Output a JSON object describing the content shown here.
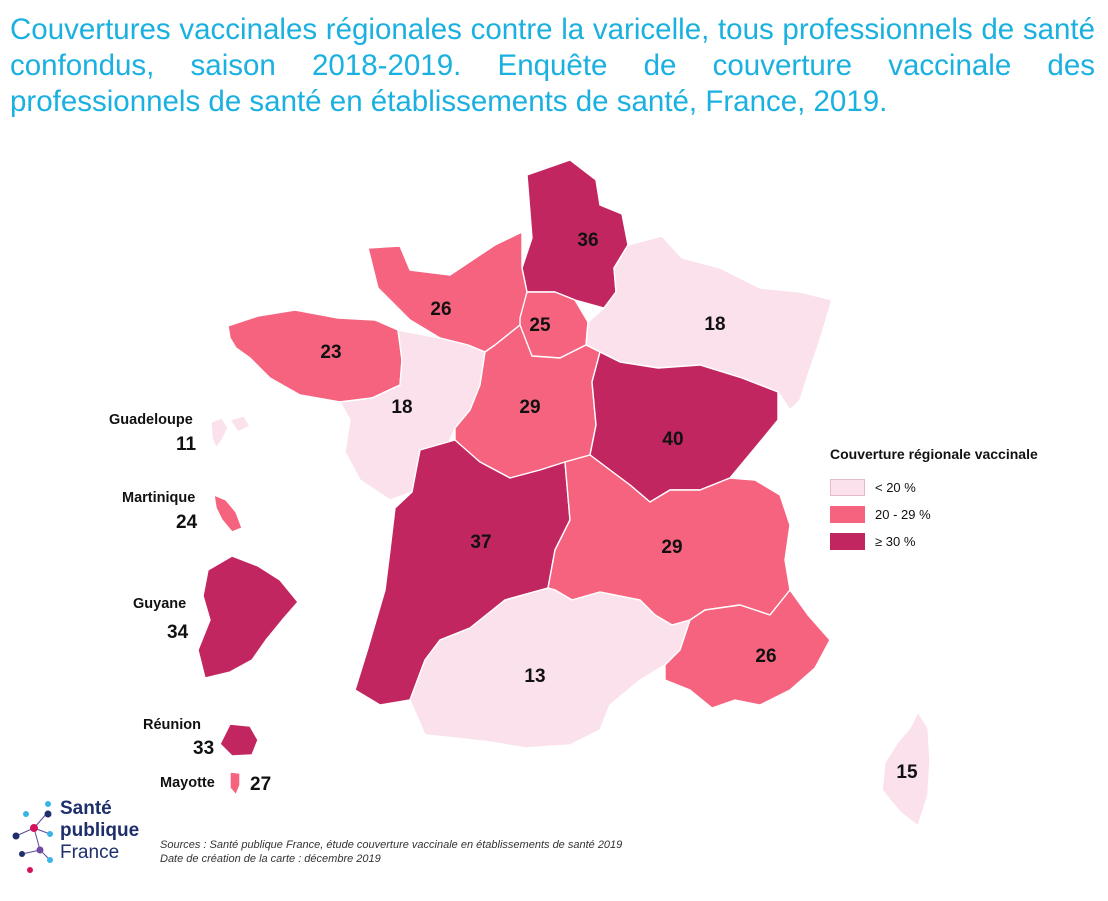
{
  "title": "Couvertures vaccinales régionales contre la varicelle, tous professionnels de santé confondus, saison 2018-2019. Enquête de couverture vaccinale des professionnels de santé en établissements de santé, France, 2019.",
  "colors": {
    "low": "#fbe1ec",
    "mid": "#f5637f",
    "high": "#c22660",
    "title": "#1ab0e0"
  },
  "regions": [
    {
      "id": "hauts-de-france",
      "value": "36",
      "class": "high"
    },
    {
      "id": "normandie",
      "value": "26",
      "class": "mid"
    },
    {
      "id": "ile-de-france",
      "value": "25",
      "class": "mid"
    },
    {
      "id": "grand-est",
      "value": "18",
      "class": "low"
    },
    {
      "id": "bretagne",
      "value": "23",
      "class": "mid"
    },
    {
      "id": "pays-de-la-loire",
      "value": "18",
      "class": "low"
    },
    {
      "id": "centre-val-de-loire",
      "value": "29",
      "class": "mid"
    },
    {
      "id": "bourgogne-franche-comte",
      "value": "40",
      "class": "high"
    },
    {
      "id": "nouvelle-aquitaine",
      "value": "37",
      "class": "high"
    },
    {
      "id": "auvergne-rhone-alpes",
      "value": "29",
      "class": "mid"
    },
    {
      "id": "occitanie",
      "value": "13",
      "class": "low"
    },
    {
      "id": "paca",
      "value": "26",
      "class": "mid"
    },
    {
      "id": "corse",
      "value": "15",
      "class": "low"
    }
  ],
  "overseas": [
    {
      "id": "guadeloupe",
      "name": "Guadeloupe",
      "value": "11",
      "class": "low"
    },
    {
      "id": "martinique",
      "name": "Martinique",
      "value": "24",
      "class": "mid"
    },
    {
      "id": "guyane",
      "name": "Guyane",
      "value": "34",
      "class": "high"
    },
    {
      "id": "reunion",
      "name": "Réunion",
      "value": "33",
      "class": "high"
    },
    {
      "id": "mayotte",
      "name": "Mayotte",
      "value": "27",
      "class": "mid"
    }
  ],
  "legend": {
    "title": "Couverture régionale vaccinale",
    "items": [
      {
        "label": "< 20 %",
        "class": "low"
      },
      {
        "label": "20 - 29 %",
        "class": "mid"
      },
      {
        "label": "≥ 30 %",
        "class": "high"
      }
    ]
  },
  "logo": {
    "line1": "Santé",
    "line2": "publique",
    "line3": "France"
  },
  "sources": {
    "line1": "Sources : Santé publique France, étude couverture vaccinale en établissements de santé 2019",
    "line2": "Date de création de la carte : décembre 2019"
  }
}
